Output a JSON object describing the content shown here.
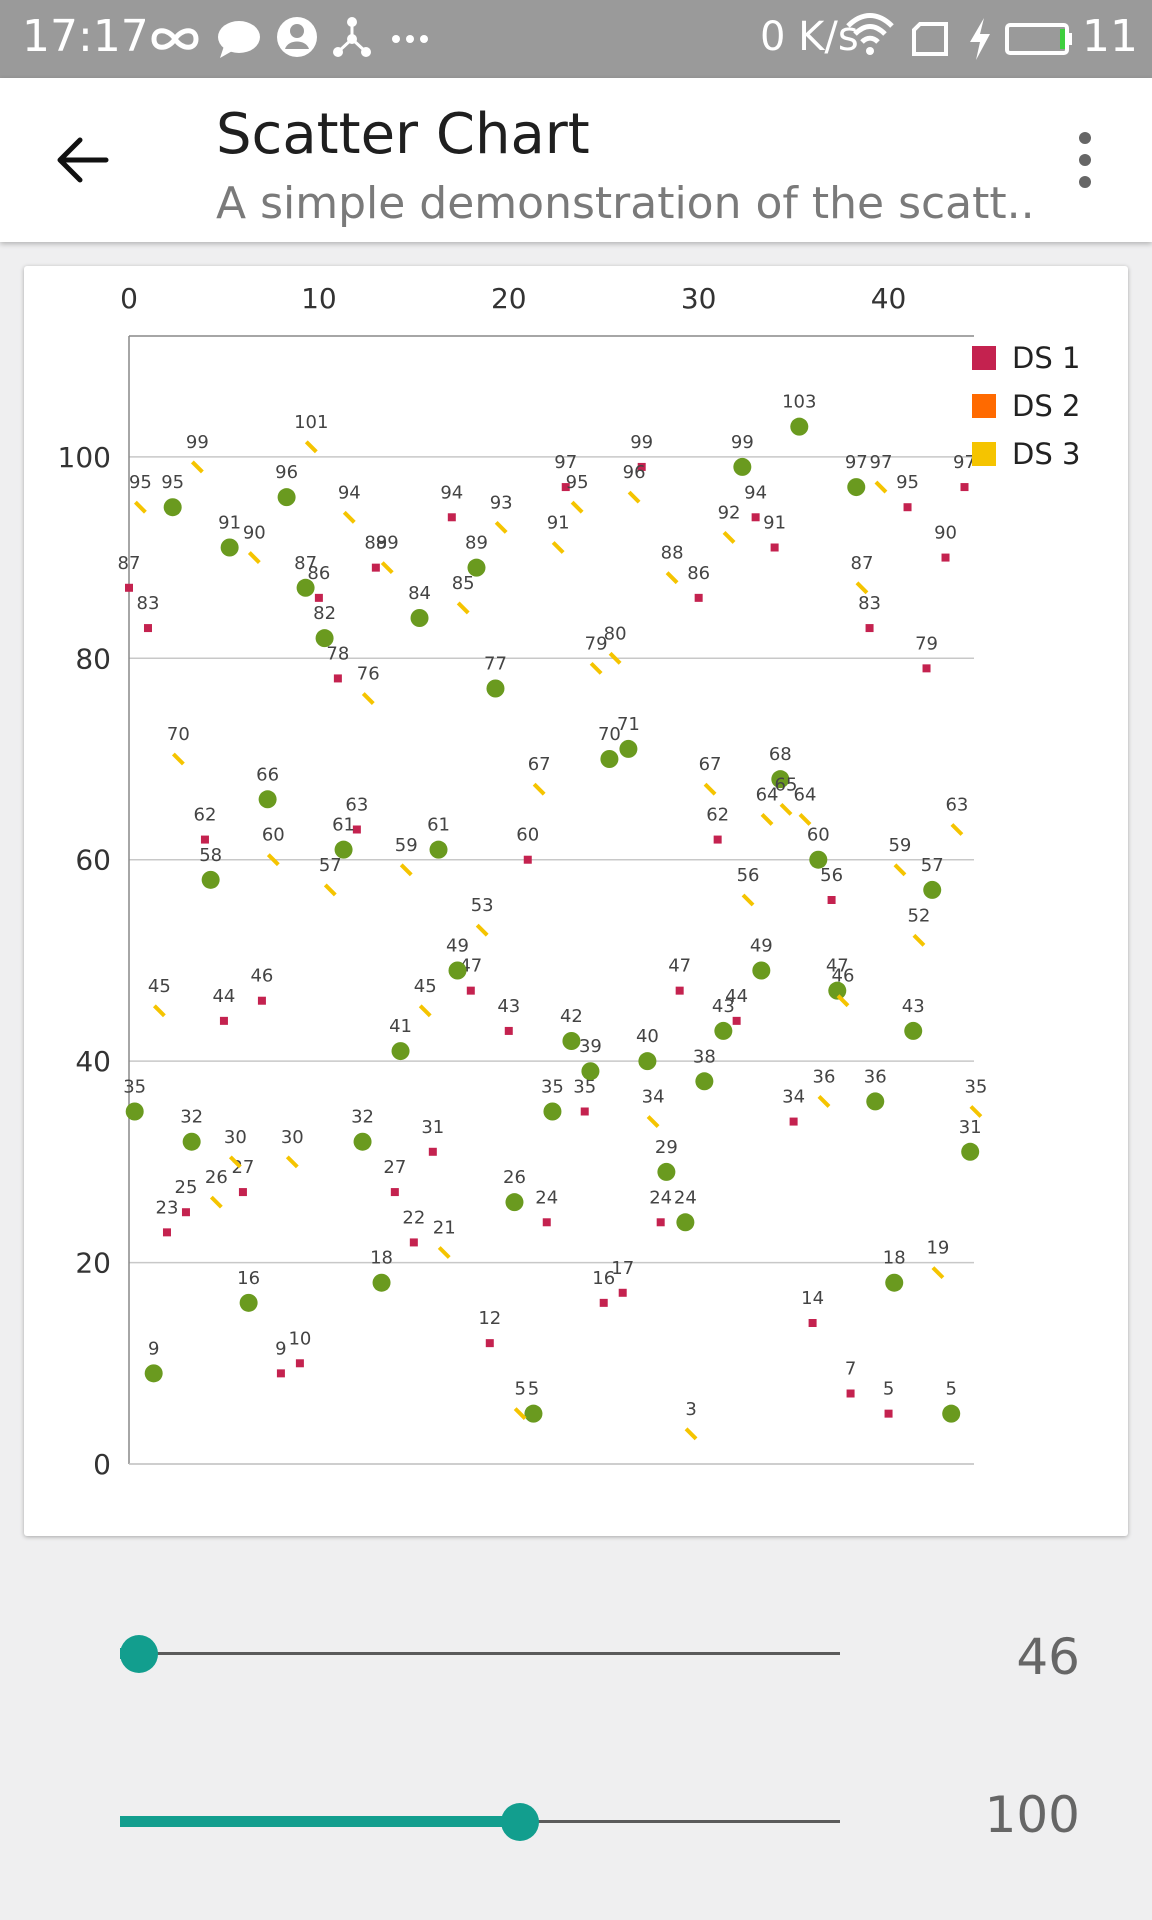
{
  "status_bar": {
    "time": "17:17",
    "network_speed": "0 K/s",
    "battery_percent": "11"
  },
  "toolbar": {
    "title": "Scatter Chart",
    "subtitle": "A simple demonstration of the scatt.."
  },
  "sliders": [
    {
      "value_label": "46",
      "fraction": 0.027
    },
    {
      "value_label": "100",
      "fraction": 0.556
    }
  ],
  "colors": {
    "ds1": "#c4224f",
    "ds2": "#ff6a00",
    "ds3": "#f5c400",
    "ds_green": "#6a9a1f",
    "accent": "#129e8e"
  },
  "chart_data": {
    "type": "scatter",
    "title": "",
    "x_ticks": [
      0,
      10,
      20,
      30,
      40
    ],
    "y_ticks": [
      0,
      20,
      40,
      60,
      80,
      100
    ],
    "xlim": [
      0,
      44.5
    ],
    "ylim": [
      0,
      112
    ],
    "grid": {
      "horizontal": true,
      "vertical": false
    },
    "legend": {
      "position": "top-right",
      "entries": [
        "DS 1",
        "DS 2",
        "DS 3"
      ]
    },
    "series": [
      {
        "name": "DS 1",
        "marker": "square",
        "color": "#c4224f",
        "points": [
          [
            0,
            87
          ],
          [
            1,
            83
          ],
          [
            2,
            23
          ],
          [
            3,
            25
          ],
          [
            4,
            62
          ],
          [
            5,
            44
          ],
          [
            6,
            27
          ],
          [
            7,
            46
          ],
          [
            8,
            9
          ],
          [
            9,
            10
          ],
          [
            10,
            86
          ],
          [
            11,
            78
          ],
          [
            12,
            63
          ],
          [
            13,
            89
          ],
          [
            14,
            27
          ],
          [
            15,
            22
          ],
          [
            16,
            31
          ],
          [
            17,
            94
          ],
          [
            18,
            47
          ],
          [
            19,
            12
          ],
          [
            20,
            43
          ],
          [
            21,
            60
          ],
          [
            22,
            24
          ],
          [
            23,
            97
          ],
          [
            24,
            35
          ],
          [
            25,
            16
          ],
          [
            26,
            17
          ],
          [
            27,
            99
          ],
          [
            28,
            24
          ],
          [
            29,
            47
          ],
          [
            30,
            86
          ],
          [
            31,
            62
          ],
          [
            32,
            44
          ],
          [
            33,
            94
          ],
          [
            34,
            91
          ],
          [
            35,
            34
          ],
          [
            36,
            14
          ],
          [
            37,
            56
          ],
          [
            38,
            7
          ],
          [
            39,
            83
          ],
          [
            40,
            5
          ],
          [
            41,
            95
          ],
          [
            42,
            79
          ],
          [
            43,
            90
          ],
          [
            44,
            97
          ]
        ]
      },
      {
        "name": "DS 2",
        "marker": "circle",
        "color": "#6a9a1f",
        "points": [
          [
            0.3,
            35
          ],
          [
            1.3,
            9
          ],
          [
            2.3,
            95
          ],
          [
            3.3,
            32
          ],
          [
            4.3,
            58
          ],
          [
            5.3,
            91
          ],
          [
            6.3,
            16
          ],
          [
            7.3,
            66
          ],
          [
            8.3,
            96
          ],
          [
            9.3,
            87
          ],
          [
            10.3,
            82
          ],
          [
            11.3,
            61
          ],
          [
            12.3,
            32
          ],
          [
            13.3,
            18
          ],
          [
            14.3,
            41
          ],
          [
            15.3,
            84
          ],
          [
            16.3,
            61
          ],
          [
            17.3,
            49
          ],
          [
            18.3,
            89
          ],
          [
            19.3,
            77
          ],
          [
            20.3,
            26
          ],
          [
            21.3,
            5
          ],
          [
            22.3,
            35
          ],
          [
            23.3,
            42
          ],
          [
            24.3,
            39
          ],
          [
            25.3,
            70
          ],
          [
            26.3,
            71
          ],
          [
            27.3,
            40
          ],
          [
            28.3,
            29
          ],
          [
            29.3,
            24
          ],
          [
            30.3,
            38
          ],
          [
            31.3,
            43
          ],
          [
            32.3,
            99
          ],
          [
            33.3,
            49
          ],
          [
            34.3,
            68
          ],
          [
            35.3,
            103
          ],
          [
            36.3,
            60
          ],
          [
            37.3,
            47
          ],
          [
            38.3,
            97
          ],
          [
            39.3,
            36
          ],
          [
            40.3,
            18
          ],
          [
            41.3,
            43
          ],
          [
            42.3,
            57
          ],
          [
            43.3,
            5
          ],
          [
            44.3,
            31
          ]
        ]
      },
      {
        "name": "DS 3",
        "marker": "dash",
        "color": "#f5c400",
        "points": [
          [
            0.6,
            95
          ],
          [
            1.6,
            45
          ],
          [
            2.6,
            70
          ],
          [
            3.6,
            99
          ],
          [
            4.6,
            26
          ],
          [
            5.6,
            30
          ],
          [
            6.6,
            90
          ],
          [
            7.6,
            60
          ],
          [
            8.6,
            30
          ],
          [
            9.6,
            101
          ],
          [
            10.6,
            57
          ],
          [
            11.6,
            94
          ],
          [
            12.6,
            76
          ],
          [
            13.6,
            89
          ],
          [
            14.6,
            59
          ],
          [
            15.6,
            45
          ],
          [
            16.6,
            21
          ],
          [
            17.6,
            85
          ],
          [
            18.6,
            53
          ],
          [
            19.6,
            93
          ],
          [
            20.6,
            5
          ],
          [
            21.6,
            67
          ],
          [
            22.6,
            91
          ],
          [
            23.6,
            95
          ],
          [
            24.6,
            79
          ],
          [
            25.6,
            80
          ],
          [
            26.6,
            96
          ],
          [
            27.6,
            34
          ],
          [
            28.6,
            88
          ],
          [
            29.6,
            3
          ],
          [
            30.6,
            67
          ],
          [
            31.6,
            92
          ],
          [
            32.6,
            56
          ],
          [
            33.6,
            64
          ],
          [
            34.6,
            65
          ],
          [
            35.6,
            64
          ],
          [
            36.6,
            36
          ],
          [
            37.6,
            46
          ],
          [
            38.6,
            87
          ],
          [
            39.6,
            97
          ],
          [
            40.6,
            59
          ],
          [
            41.6,
            52
          ],
          [
            42.6,
            19
          ],
          [
            43.6,
            63
          ],
          [
            44.6,
            35
          ]
        ]
      }
    ]
  }
}
